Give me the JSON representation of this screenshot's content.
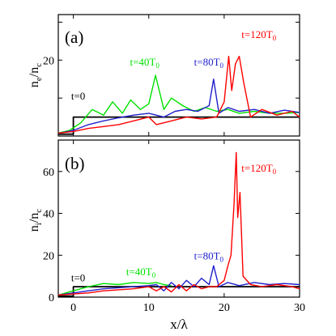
{
  "chart_data": [
    {
      "type": "line",
      "panel_label": "(a)",
      "xlabel": "",
      "ylabel_main": "n",
      "ylabel_sub1": "e",
      "ylabel_sep": "/",
      "ylabel_main2": "n",
      "ylabel_sub2": "c",
      "xlim": [
        -2,
        30
      ],
      "ylim": [
        0,
        32
      ],
      "yticks": [
        0,
        10,
        20,
        30
      ],
      "ytick_labels": [
        "",
        "",
        "20",
        ""
      ],
      "grid": false,
      "series": [
        {
          "color": "#000000",
          "label_main": "t=0",
          "label_sub": "",
          "label_at": [
            -0.3,
            9.6
          ],
          "x": [
            -2,
            0,
            0,
            30
          ],
          "y": [
            0.5,
            0.5,
            5,
            5
          ]
        },
        {
          "color": "#00e000",
          "label_main": "t=40T",
          "label_sub": "0",
          "label_at": [
            7.5,
            18.6
          ],
          "x": [
            -2,
            -0.5,
            1,
            2.5,
            4,
            5.2,
            6.5,
            7.6,
            8.9,
            10,
            10.9,
            12,
            13,
            14.5,
            16,
            17.5,
            19,
            20.5,
            22,
            24,
            26,
            28,
            30
          ],
          "y": [
            0.8,
            1.5,
            3.5,
            7,
            5.5,
            9,
            6,
            9.5,
            7,
            8.5,
            16,
            7,
            10,
            8,
            6.5,
            7.5,
            6.5,
            7,
            6,
            6.5,
            6,
            6,
            6.2
          ]
        },
        {
          "color": "#2020cc",
          "label_main": "t=80T",
          "label_sub": "0",
          "label_at": [
            16,
            18.6
          ],
          "x": [
            -2,
            0,
            2,
            4,
            6,
            8,
            10,
            12,
            13.5,
            15,
            16.5,
            18,
            18.6,
            19.3,
            20.5,
            22,
            24,
            26,
            28,
            30
          ],
          "y": [
            0.7,
            1.5,
            3,
            4,
            4.8,
            5.5,
            6,
            5,
            6.5,
            7,
            6.5,
            8,
            15,
            6,
            7.5,
            6.5,
            7,
            6,
            6.8,
            6.2
          ]
        },
        {
          "color": "#ff0000",
          "label_main": "t=120T",
          "label_sub": "0",
          "label_at": [
            22.3,
            25.8
          ],
          "x": [
            -2,
            0,
            2,
            4,
            6,
            8,
            10,
            11,
            13,
            15,
            17,
            19,
            20,
            20.6,
            21,
            21.5,
            22,
            22.6,
            23.5,
            25,
            27,
            29,
            30
          ],
          "y": [
            0.8,
            1.2,
            2,
            2.5,
            3,
            4,
            5,
            3,
            4,
            5,
            4.5,
            5,
            9,
            21,
            12,
            19,
            21,
            14,
            5,
            7,
            5.5,
            6.5,
            5
          ]
        }
      ]
    },
    {
      "type": "line",
      "panel_label": "(b)",
      "xlabel_main": "x/λ",
      "ylabel_main": "n",
      "ylabel_sub1": "i",
      "ylabel_sep": "/",
      "ylabel_main2": "n",
      "ylabel_sub2": "c",
      "xlim": [
        -2,
        30
      ],
      "ylim": [
        0,
        75
      ],
      "yticks": [
        0,
        20,
        40,
        60
      ],
      "ytick_labels": [
        "0",
        "20",
        "40",
        "60"
      ],
      "xticks": [
        0,
        10,
        20,
        30
      ],
      "xtick_labels": [
        "0",
        "10",
        "20",
        "30"
      ],
      "grid": false,
      "series": [
        {
          "color": "#000000",
          "label_main": "t=0",
          "label_sub": "",
          "label_at": [
            -0.3,
            7.6
          ],
          "x": [
            -2,
            0,
            0,
            30
          ],
          "y": [
            0.5,
            0.5,
            5,
            5
          ]
        },
        {
          "color": "#00e000",
          "label_main": "t=40T",
          "label_sub": "0",
          "label_at": [
            7,
            10.5
          ],
          "x": [
            -2,
            0,
            2,
            4,
            6,
            8,
            10,
            11,
            12,
            13
          ],
          "y": [
            1,
            3,
            5,
            6.5,
            6,
            7,
            6.5,
            7,
            6,
            5.5
          ]
        },
        {
          "color": "#2020cc",
          "label_main": "t=80T",
          "label_sub": "0",
          "label_at": [
            16,
            18
          ],
          "x": [
            -2,
            0,
            2,
            4,
            6,
            8,
            10,
            11,
            12,
            13,
            14,
            15,
            16,
            17,
            18,
            18.6,
            19.3,
            20.5,
            22,
            24,
            26,
            28,
            30
          ],
          "y": [
            1,
            2,
            3,
            4,
            4.5,
            5,
            5.5,
            6,
            3,
            7,
            4,
            8,
            5,
            9,
            6,
            15,
            5,
            7,
            5.5,
            7,
            6,
            6.5,
            6
          ]
        },
        {
          "color": "#ff0000",
          "label_main": "t=120T",
          "label_sub": "0",
          "label_at": [
            22.3,
            60
          ],
          "x": [
            -2,
            0,
            2,
            4,
            6,
            8,
            10,
            11,
            12,
            13,
            14,
            15,
            16,
            17,
            18,
            19,
            20,
            20.5,
            20.9,
            21.3,
            21.6,
            21.8,
            22.1,
            22.5,
            23.5,
            25,
            27,
            29,
            30
          ],
          "y": [
            1,
            1.5,
            2,
            3,
            3.5,
            4,
            5,
            3,
            5,
            2.5,
            6,
            3,
            6,
            4,
            5,
            5,
            8,
            15,
            20,
            44,
            69,
            38,
            50,
            10,
            6,
            5,
            6,
            5,
            4
          ]
        }
      ]
    }
  ]
}
